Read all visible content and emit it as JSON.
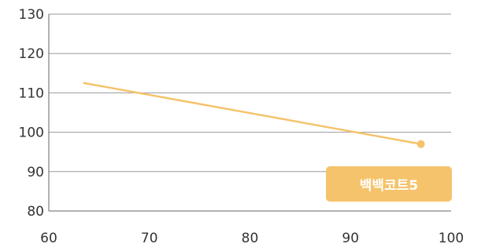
{
  "chart_data": {
    "type": "line",
    "title": "",
    "xlabel": "",
    "ylabel": "",
    "xlim": [
      60,
      100
    ],
    "ylim": [
      80,
      130
    ],
    "xticks": [
      60,
      70,
      80,
      90,
      100
    ],
    "yticks": [
      80,
      90,
      100,
      110,
      120,
      130
    ],
    "grid": true,
    "legend_position": "bottom-right",
    "series": [
      {
        "name": "백백코트5",
        "color": "#f5c36b",
        "x": [
          63.5,
          97
        ],
        "y": [
          112.5,
          97
        ],
        "end_marker": true
      }
    ]
  },
  "colors": {
    "grid": "#9a9a9a",
    "axis": "#666666",
    "series": "#f5c36b",
    "legend_bg": "#f5c36b",
    "legend_text": "#ffffff"
  }
}
